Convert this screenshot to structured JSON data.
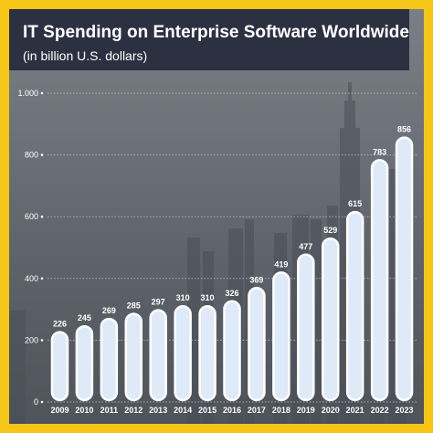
{
  "header": {
    "title": "IT Spending on Enterprise Software Worldwide",
    "subtitle": "(in billion U.S. dollars)"
  },
  "colors": {
    "frame": "#f5c518",
    "header_bg": "#2b3140",
    "bar_fill": "#dfeaf8",
    "bar_stroke": "#ffffff",
    "text": "#ffffff"
  },
  "chart_data": {
    "type": "bar",
    "title": "IT Spending on Enterprise Software Worldwide",
    "subtitle": "(in billion U.S. dollars)",
    "xlabel": "",
    "ylabel": "",
    "ylim": [
      0,
      1000
    ],
    "yticks": [
      0,
      200,
      400,
      600,
      800,
      1000
    ],
    "ytick_labels": [
      "0",
      "200",
      "400",
      "600",
      "800",
      "1.000"
    ],
    "grid": true,
    "legend": "none",
    "categories": [
      "2009",
      "2010",
      "2011",
      "2012",
      "2013",
      "2014",
      "2015",
      "2016",
      "2017",
      "2018",
      "2019",
      "2020",
      "2021",
      "2022",
      "2023"
    ],
    "values": [
      226,
      245,
      269,
      285,
      297,
      310,
      310,
      326,
      369,
      419,
      477,
      529,
      615,
      783,
      856
    ],
    "value_labels": [
      "226",
      "245",
      "269",
      "285",
      "297",
      "310",
      "310",
      "326",
      "369",
      "419",
      "477",
      "529",
      "615",
      "783",
      "856"
    ]
  }
}
